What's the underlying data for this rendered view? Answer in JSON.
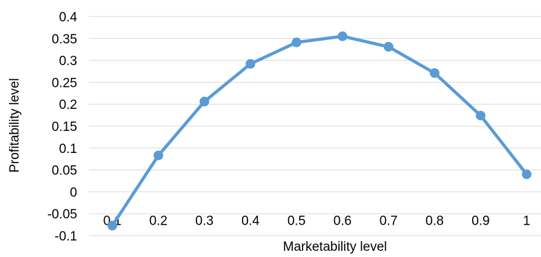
{
  "chart_data": {
    "type": "line",
    "title": "",
    "xlabel": "Marketability level",
    "ylabel": "Profitability level",
    "x": [
      0.1,
      0.2,
      0.3,
      0.4,
      0.5,
      0.6,
      0.7,
      0.8,
      0.9,
      1
    ],
    "x_tick_labels": [
      "0.1",
      "0.2",
      "0.3",
      "0.4",
      "0.5",
      "0.6",
      "0.7",
      "0.8",
      "0.9",
      "1"
    ],
    "series": [
      {
        "values": [
          -0.077,
          0.083,
          0.206,
          0.292,
          0.341,
          0.355,
          0.331,
          0.271,
          0.174,
          0.04
        ]
      }
    ],
    "ylim": [
      -0.1,
      0.4
    ],
    "y_ticks": [
      0.4,
      0.35,
      0.3,
      0.25,
      0.2,
      0.15,
      0.1,
      0.05,
      0,
      -0.05,
      -0.1
    ],
    "y_tick_labels": [
      "0.4",
      "0.35",
      "0.3",
      "0.25",
      "0.2",
      "0.15",
      "0.1",
      "0.05",
      "0",
      "-0.05",
      "-0.1"
    ],
    "grid": true,
    "legend": "none",
    "colors": {
      "series": "#5b9bd5",
      "grid": "#d9d9d9",
      "axis": "#d9d9d9"
    }
  }
}
